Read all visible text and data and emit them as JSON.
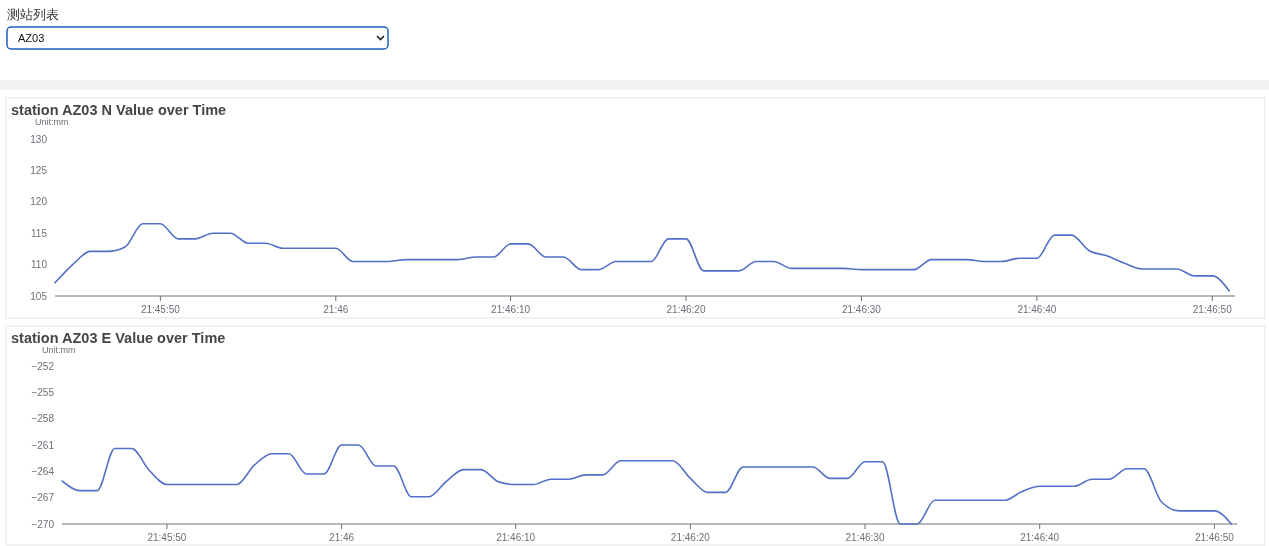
{
  "chart_data": [
    {
      "type": "other",
      "title": "测站列表",
      "annotations": [
        "AZ03"
      ]
    },
    {
      "type": "line",
      "title": "station AZ03 N Value over Time",
      "ylabel": "Unit:mm",
      "xlim": [
        21.76222,
        21.78092
      ],
      "ylim": [
        105,
        130
      ],
      "yticks": [
        105,
        110,
        115,
        120,
        125,
        130
      ],
      "xticks": [
        {
          "value": 21.76389,
          "label": "21:45:50"
        },
        {
          "value": 21.76667,
          "label": "21:46"
        },
        {
          "value": 21.76944,
          "label": "21:46:10"
        },
        {
          "value": 21.77222,
          "label": "21:46:20"
        },
        {
          "value": 21.775,
          "label": "21:46:30"
        },
        {
          "value": 21.77778,
          "label": "21:46:40"
        },
        {
          "value": 21.78056,
          "label": "21:46:50"
        }
      ],
      "grid": false,
      "marker": "none",
      "line_style": "solid",
      "x": [
        21.76222,
        21.7625,
        21.76278,
        21.76306,
        21.76333,
        21.76361,
        21.76389,
        21.76417,
        21.76444,
        21.76472,
        21.765,
        21.76528,
        21.76556,
        21.76583,
        21.76611,
        21.76639,
        21.76667,
        21.76694,
        21.76722,
        21.7675,
        21.76778,
        21.76806,
        21.76833,
        21.76861,
        21.76889,
        21.76917,
        21.76944,
        21.76972,
        21.77,
        21.77028,
        21.77056,
        21.77083,
        21.77111,
        21.77139,
        21.77167,
        21.77194,
        21.77222,
        21.7725,
        21.77278,
        21.77306,
        21.77333,
        21.77361,
        21.77389,
        21.77417,
        21.77444,
        21.77472,
        21.775,
        21.77528,
        21.77556,
        21.77583,
        21.77611,
        21.77639,
        21.77667,
        21.77694,
        21.77722,
        21.7775,
        21.77778,
        21.77806,
        21.77833,
        21.77861,
        21.77889,
        21.77917,
        21.77944,
        21.77972,
        21.78,
        21.78028,
        21.78056,
        21.78083
      ],
      "series": [
        {
          "color": "#5470c6",
          "values": [
            107.1,
            110.0,
            112.1,
            112.1,
            112.8,
            116.5,
            116.5,
            114.1,
            114.1,
            115.0,
            115.0,
            113.4,
            113.4,
            112.6,
            112.6,
            112.6,
            112.6,
            110.5,
            110.5,
            110.5,
            110.8,
            110.8,
            110.8,
            110.8,
            111.2,
            111.2,
            113.3,
            113.3,
            111.2,
            111.2,
            109.2,
            109.2,
            110.5,
            110.5,
            110.5,
            114.1,
            114.1,
            109.0,
            109.0,
            109.0,
            110.5,
            110.5,
            109.4,
            109.4,
            109.4,
            109.4,
            109.2,
            109.2,
            109.2,
            109.2,
            110.8,
            110.8,
            110.8,
            110.5,
            110.5,
            111.0,
            111.0,
            114.7,
            114.7,
            112.2,
            111.4,
            110.2,
            109.3,
            109.3,
            109.3,
            108.2,
            108.2,
            105.8
          ]
        }
      ]
    },
    {
      "type": "line",
      "title": "station AZ03 E Value over Time",
      "ylabel": "Unit:mm",
      "xlim": [
        21.76222,
        21.78092
      ],
      "ylim": [
        -270,
        -252
      ],
      "yticks": [
        {
          "value": -270,
          "label": "−270"
        },
        {
          "value": -267,
          "label": "−267"
        },
        {
          "value": -264,
          "label": "−264"
        },
        {
          "value": -261,
          "label": "−261"
        },
        {
          "value": -258,
          "label": "−258"
        },
        {
          "value": -255,
          "label": "−255"
        },
        {
          "value": -252,
          "label": "−252"
        }
      ],
      "xticks": [
        {
          "value": 21.76389,
          "label": "21:45:50"
        },
        {
          "value": 21.76667,
          "label": "21:46"
        },
        {
          "value": 21.76944,
          "label": "21:46:10"
        },
        {
          "value": 21.77222,
          "label": "21:46:20"
        },
        {
          "value": 21.775,
          "label": "21:46:30"
        },
        {
          "value": 21.77778,
          "label": "21:46:40"
        },
        {
          "value": 21.78056,
          "label": "21:46:50"
        }
      ],
      "grid": false,
      "marker": "none",
      "line_style": "solid",
      "x": [
        21.76222,
        21.7625,
        21.76278,
        21.76306,
        21.76333,
        21.76361,
        21.76389,
        21.76417,
        21.76444,
        21.76472,
        21.765,
        21.76528,
        21.76556,
        21.76583,
        21.76611,
        21.76639,
        21.76667,
        21.76694,
        21.76722,
        21.7675,
        21.76778,
        21.76806,
        21.76833,
        21.76861,
        21.76889,
        21.76917,
        21.76944,
        21.76972,
        21.77,
        21.77028,
        21.77056,
        21.77083,
        21.77111,
        21.77139,
        21.77167,
        21.77194,
        21.77222,
        21.7725,
        21.77278,
        21.77306,
        21.77333,
        21.77361,
        21.77389,
        21.77417,
        21.77444,
        21.77472,
        21.775,
        21.77528,
        21.77556,
        21.77583,
        21.77611,
        21.77639,
        21.77667,
        21.77694,
        21.77722,
        21.7775,
        21.77778,
        21.77806,
        21.77833,
        21.77861,
        21.77889,
        21.77917,
        21.77944,
        21.77972,
        21.78,
        21.78028,
        21.78056,
        21.78083
      ],
      "series": [
        {
          "color": "#5470c6",
          "values": [
            -265.1,
            -266.2,
            -266.2,
            -261.4,
            -261.4,
            -263.9,
            -265.5,
            -265.5,
            -265.5,
            -265.5,
            -265.5,
            -263.3,
            -262.0,
            -262.0,
            -264.3,
            -264.3,
            -261.0,
            -261.0,
            -263.4,
            -263.4,
            -266.9,
            -266.9,
            -265.2,
            -263.8,
            -263.8,
            -265.2,
            -265.5,
            -265.5,
            -264.9,
            -264.9,
            -264.4,
            -264.4,
            -262.8,
            -262.8,
            -262.8,
            -262.8,
            -264.8,
            -266.4,
            -266.4,
            -263.5,
            -263.5,
            -263.5,
            -263.5,
            -263.5,
            -264.8,
            -264.8,
            -262.9,
            -262.9,
            -270.0,
            -270.0,
            -267.3,
            -267.3,
            -267.3,
            -267.3,
            -267.3,
            -266.3,
            -265.7,
            -265.7,
            -265.7,
            -264.9,
            -264.9,
            -263.7,
            -263.7,
            -267.5,
            -268.5,
            -268.5,
            -268.5,
            -270.0
          ]
        }
      ]
    }
  ]
}
